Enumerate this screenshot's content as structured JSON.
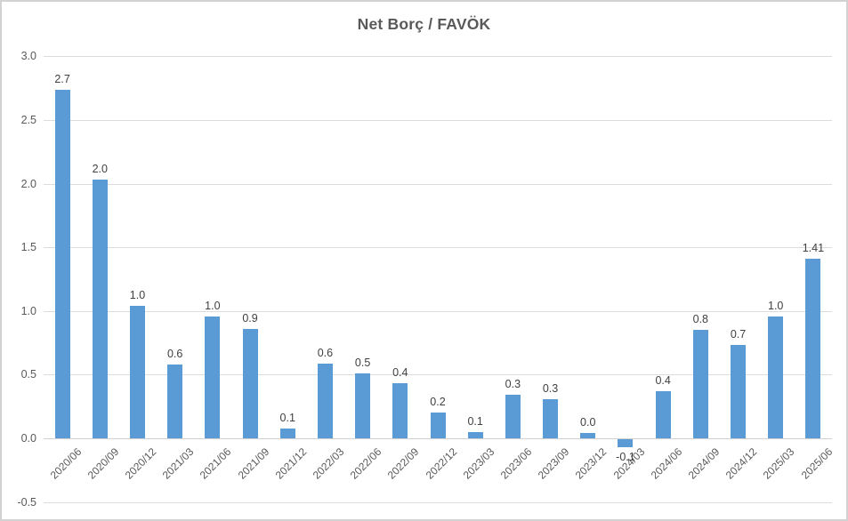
{
  "chart_data": {
    "type": "bar",
    "title": "Net Borç / FAVÖK",
    "xlabel": "",
    "ylabel": "",
    "legend_position": "none",
    "grid": true,
    "ylim": [
      -0.5,
      3.0
    ],
    "y_ticks": [
      "3.0",
      "2.5",
      "2.0",
      "1.5",
      "1.0",
      "0.5",
      "0.0",
      "-0.5"
    ],
    "categories": [
      "2020/06",
      "2020/09",
      "2020/12",
      "2021/03",
      "2021/06",
      "2021/09",
      "2021/12",
      "2022/03",
      "2022/06",
      "2022/09",
      "2022/12",
      "2023/03",
      "2023/06",
      "2023/09",
      "2023/12",
      "2024/03",
      "2024/06",
      "2024/09",
      "2024/12",
      "2025/03",
      "2025/06"
    ],
    "values": [
      2.74,
      2.03,
      1.04,
      0.58,
      0.96,
      0.86,
      0.08,
      0.59,
      0.51,
      0.43,
      0.2,
      0.05,
      0.34,
      0.31,
      0.04,
      -0.06,
      0.37,
      0.85,
      0.73,
      0.96,
      1.41
    ],
    "data_labels": [
      "2.7",
      "2.0",
      "1.0",
      "0.6",
      "1.0",
      "0.9",
      "0.1",
      "0.6",
      "0.5",
      "0.4",
      "0.2",
      "0.1",
      "0.3",
      "0.3",
      "0.0",
      "-0.1",
      "0.4",
      "0.8",
      "0.7",
      "1.0",
      "1.41"
    ],
    "colors": {
      "bar": "#5b9bd5",
      "title_text": "#595959",
      "axis_text": "#595959",
      "data_label_text": "#404040",
      "gridline": "#dcdcdc",
      "axis_line": "#d0d0d0",
      "frame_border": "#d2d2d2"
    }
  }
}
